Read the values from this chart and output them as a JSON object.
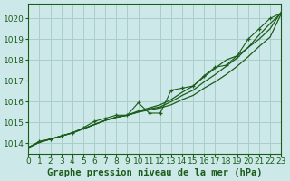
{
  "title": "Graphe pression niveau de la mer (hPa)",
  "background_color": "#cde8e8",
  "grid_color": "#a8cfc8",
  "line_color": "#1a5c1a",
  "xlim": [
    0,
    23
  ],
  "ylim": [
    1013.5,
    1020.7
  ],
  "yticks": [
    1014,
    1015,
    1016,
    1017,
    1018,
    1019,
    1020
  ],
  "xticks": [
    0,
    1,
    2,
    3,
    4,
    5,
    6,
    7,
    8,
    9,
    10,
    11,
    12,
    13,
    14,
    15,
    16,
    17,
    18,
    19,
    20,
    21,
    22,
    23
  ],
  "line1_x": [
    0,
    1,
    2,
    3,
    4,
    5,
    6,
    7,
    8,
    9,
    10,
    11,
    12,
    13,
    14,
    15,
    16,
    17,
    18,
    19,
    20,
    21,
    22,
    23
  ],
  "line1_y": [
    1013.8,
    1014.05,
    1014.2,
    1014.35,
    1014.5,
    1014.7,
    1014.9,
    1015.1,
    1015.25,
    1015.35,
    1015.5,
    1015.6,
    1015.7,
    1015.85,
    1016.1,
    1016.3,
    1016.65,
    1016.95,
    1017.3,
    1017.7,
    1018.15,
    1018.65,
    1019.1,
    1020.2
  ],
  "line2_x": [
    0,
    1,
    2,
    3,
    4,
    5,
    6,
    7,
    8,
    9,
    10,
    11,
    12,
    13,
    14,
    15,
    16,
    17,
    18,
    19,
    20,
    21,
    22,
    23
  ],
  "line2_y": [
    1013.8,
    1014.05,
    1014.2,
    1014.35,
    1014.5,
    1014.7,
    1014.9,
    1015.1,
    1015.25,
    1015.35,
    1015.5,
    1015.65,
    1015.75,
    1016.0,
    1016.3,
    1016.55,
    1016.95,
    1017.3,
    1017.7,
    1018.1,
    1018.6,
    1019.2,
    1019.75,
    1020.25
  ],
  "line3_x": [
    0,
    1,
    2,
    3,
    4,
    5,
    6,
    7,
    8,
    9,
    10,
    11,
    12,
    13,
    14,
    15,
    16,
    17,
    18,
    19,
    20,
    21,
    22,
    23
  ],
  "line3_y": [
    1013.8,
    1014.05,
    1014.2,
    1014.35,
    1014.5,
    1014.7,
    1014.9,
    1015.1,
    1015.25,
    1015.35,
    1015.55,
    1015.7,
    1015.85,
    1016.1,
    1016.45,
    1016.75,
    1017.2,
    1017.6,
    1018.0,
    1018.2,
    1018.6,
    1019.0,
    1019.5,
    1020.3
  ],
  "marker_x": [
    0,
    1,
    2,
    3,
    4,
    5,
    6,
    7,
    8,
    9,
    10,
    11,
    12,
    13,
    14,
    15,
    16,
    17,
    18,
    19,
    20,
    21,
    22,
    23
  ],
  "marker_y": [
    1013.8,
    1014.1,
    1014.2,
    1014.35,
    1014.5,
    1014.75,
    1015.05,
    1015.2,
    1015.35,
    1015.35,
    1015.95,
    1015.45,
    1015.45,
    1016.55,
    1016.65,
    1016.75,
    1017.25,
    1017.65,
    1017.75,
    1018.2,
    1019.0,
    1019.5,
    1020.0,
    1020.25
  ],
  "xlabel_fontsize": 7.5,
  "tick_fontsize": 6.5
}
